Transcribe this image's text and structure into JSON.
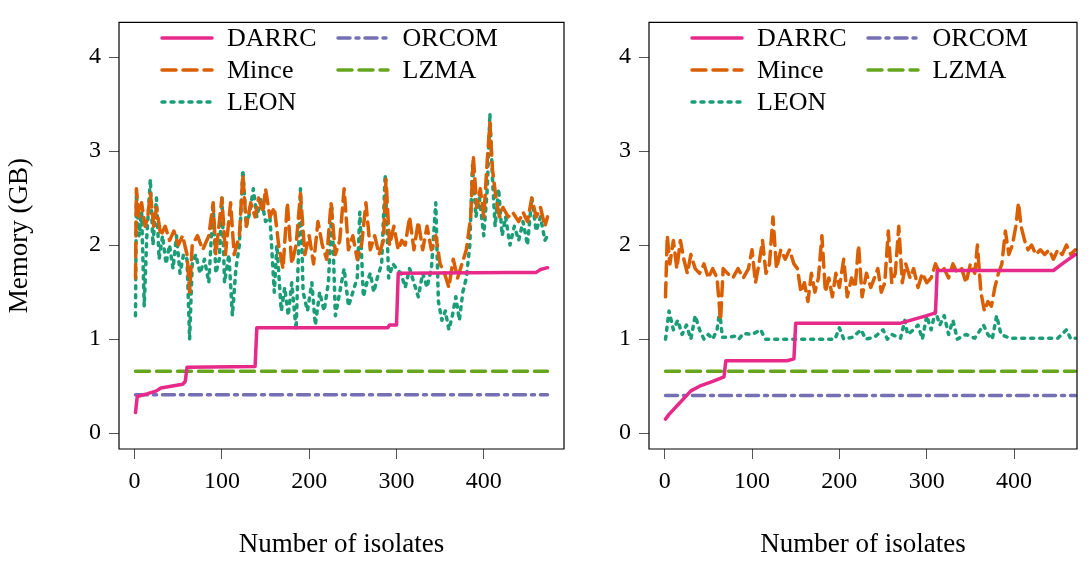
{
  "chart_data": [
    {
      "type": "line",
      "xlabel": "Number of isolates",
      "ylabel": "Memory (GB)",
      "xlim": [
        -17.9,
        491.9
      ],
      "xticks": [
        0,
        100,
        200,
        300,
        400
      ],
      "ylim": [
        -0.168,
        4.368
      ],
      "yticks": [
        0,
        1,
        2,
        3,
        4
      ],
      "grid": false,
      "legend": "top",
      "series": [
        {
          "name": "DARRC",
          "color": "#e7298a",
          "line_style": "solid",
          "x": [
            1,
            3,
            15,
            25,
            30,
            55,
            58,
            60,
            138,
            140,
            290,
            292,
            300,
            302,
            460,
            465,
            473
          ],
          "values": [
            0.22,
            0.39,
            0.42,
            0.45,
            0.48,
            0.52,
            0.55,
            0.7,
            0.71,
            1.12,
            1.12,
            1.15,
            1.15,
            1.7,
            1.71,
            1.74,
            1.76
          ]
        },
        {
          "name": "Mince",
          "color": "#d95f02",
          "line_style": "dashed",
          "x": [
            1,
            2,
            5,
            8,
            12,
            15,
            18,
            22,
            25,
            30,
            35,
            40,
            45,
            50,
            55,
            60,
            63,
            66,
            72,
            78,
            85,
            90,
            93,
            100,
            104,
            110,
            114,
            120,
            124,
            128,
            133,
            138,
            142,
            147,
            150,
            155,
            160,
            165,
            170,
            175,
            180,
            185,
            190,
            195,
            200,
            205,
            210,
            215,
            220,
            225,
            230,
            235,
            240,
            245,
            250,
            255,
            260,
            265,
            270,
            275,
            280,
            285,
            288,
            292,
            297,
            302,
            306,
            310,
            315,
            320,
            325,
            330,
            335,
            340,
            345,
            350,
            355,
            360,
            365,
            370,
            375,
            380,
            385,
            388,
            392,
            396,
            400,
            404,
            407,
            410,
            414,
            418,
            422,
            428,
            433,
            440,
            445,
            450,
            455,
            460,
            465,
            470,
            473
          ],
          "values": [
            1.65,
            2.6,
            2.3,
            2.45,
            2.2,
            2.3,
            2.55,
            2.2,
            2.4,
            2.1,
            2.2,
            2.05,
            2.15,
            2.0,
            2.1,
            1.9,
            1.5,
            2.0,
            2.1,
            1.95,
            2.1,
            2.45,
            1.9,
            2.5,
            1.9,
            2.45,
            1.9,
            2.1,
            2.75,
            2.2,
            2.45,
            2.3,
            2.5,
            2.35,
            2.6,
            2.3,
            2.4,
            2.0,
            1.75,
            2.45,
            1.8,
            2.0,
            2.55,
            1.9,
            2.1,
            1.8,
            2.25,
            2.0,
            1.85,
            2.45,
            1.9,
            2.05,
            2.6,
            1.95,
            2.1,
            1.85,
            2.0,
            2.45,
            1.95,
            2.1,
            1.9,
            2.05,
            2.7,
            2.0,
            2.2,
            1.95,
            2.05,
            2.0,
            2.3,
            1.95,
            2.25,
            1.95,
            2.2,
            1.95,
            2.1,
            1.8,
            1.7,
            1.55,
            1.85,
            1.65,
            1.8,
            1.95,
            2.3,
            2.95,
            2.4,
            2.6,
            2.3,
            2.9,
            3.3,
            2.8,
            2.5,
            2.3,
            2.4,
            2.3,
            2.35,
            2.25,
            2.35,
            2.25,
            2.5,
            2.3,
            2.4,
            2.2,
            2.3
          ]
        },
        {
          "name": "LEON",
          "color": "#1b9e77",
          "line_style": "dotted",
          "x": [
            1,
            2,
            5,
            8,
            11,
            14,
            18,
            21,
            25,
            28,
            32,
            36,
            40,
            44,
            48,
            52,
            56,
            60,
            63,
            66,
            70,
            75,
            80,
            85,
            90,
            93,
            97,
            100,
            103,
            108,
            112,
            116,
            120,
            124,
            128,
            132,
            136,
            140,
            145,
            150,
            155,
            160,
            163,
            168,
            172,
            176,
            180,
            185,
            190,
            193,
            198,
            203,
            207,
            212,
            217,
            222,
            226,
            230,
            235,
            240,
            245,
            250,
            255,
            258,
            262,
            266,
            270,
            274,
            278,
            283,
            287,
            291,
            296,
            300,
            305,
            310,
            315,
            320,
            325,
            330,
            335,
            340,
            345,
            348,
            352,
            356,
            360,
            364,
            368,
            372,
            376,
            380,
            384,
            387,
            391,
            395,
            400,
            404,
            407,
            410,
            413,
            417,
            421,
            425,
            430,
            435,
            440,
            445,
            450,
            455,
            460,
            465,
            470,
            473
          ],
          "values": [
            1.25,
            2.55,
            2.1,
            2.35,
            1.35,
            2.1,
            2.7,
            2.0,
            2.5,
            1.85,
            2.1,
            1.8,
            2.0,
            1.75,
            2.1,
            1.7,
            1.9,
            1.85,
            1.0,
            1.8,
            1.9,
            1.7,
            1.85,
            1.6,
            2.45,
            1.7,
            1.85,
            2.5,
            1.6,
            1.9,
            1.25,
            1.75,
            2.0,
            2.8,
            2.2,
            2.35,
            2.6,
            2.3,
            2.5,
            2.25,
            2.3,
            1.5,
            2.0,
            1.3,
            1.55,
            1.25,
            1.6,
            1.1,
            2.6,
            1.5,
            1.3,
            1.6,
            1.15,
            1.5,
            1.3,
            1.6,
            2.4,
            1.25,
            1.5,
            1.75,
            1.35,
            1.5,
            1.65,
            2.35,
            1.45,
            1.6,
            1.7,
            1.5,
            1.65,
            1.8,
            2.75,
            1.65,
            1.8,
            1.75,
            1.7,
            1.55,
            1.75,
            1.6,
            1.45,
            1.7,
            1.55,
            1.75,
            2.45,
            1.4,
            1.2,
            1.3,
            1.1,
            1.25,
            1.45,
            1.2,
            1.5,
            1.65,
            2.0,
            2.85,
            2.3,
            2.5,
            2.1,
            2.6,
            3.4,
            2.7,
            2.2,
            2.6,
            2.1,
            2.3,
            2.0,
            2.2,
            2.05,
            2.25,
            2.0,
            2.5,
            2.15,
            2.3,
            2.05,
            2.1
          ]
        },
        {
          "name": "ORCOM",
          "color": "#7570b3",
          "line_style": "dashdot",
          "x": [
            1,
            473
          ],
          "values": [
            0.41,
            0.41
          ]
        },
        {
          "name": "LZMA",
          "color": "#66a61e",
          "line_style": "dashed",
          "x": [
            1,
            473
          ],
          "values": [
            0.66,
            0.66
          ]
        }
      ]
    },
    {
      "type": "line",
      "xlabel": "Number of isolates",
      "xlim": [
        -17.9,
        472
      ],
      "xticks": [
        0,
        100,
        200,
        300,
        400
      ],
      "ylim": [
        -0.168,
        4.368
      ],
      "yticks": [
        0,
        1,
        2,
        3,
        4
      ],
      "grid": false,
      "legend": "top",
      "series": [
        {
          "name": "DARRC",
          "color": "#e7298a",
          "line_style": "solid",
          "x": [
            1,
            5,
            15,
            25,
            30,
            40,
            55,
            68,
            70,
            140,
            148,
            150,
            270,
            300,
            310,
            312,
            445,
            455,
            470
          ],
          "values": [
            0.15,
            0.2,
            0.3,
            0.4,
            0.45,
            0.5,
            0.55,
            0.6,
            0.77,
            0.77,
            0.79,
            1.17,
            1.17,
            1.25,
            1.28,
            1.73,
            1.73,
            1.8,
            1.9
          ]
        },
        {
          "name": "Mince",
          "color": "#d95f02",
          "line_style": "dashed",
          "x": [
            1,
            3,
            6,
            10,
            14,
            18,
            22,
            26,
            30,
            35,
            40,
            45,
            50,
            55,
            60,
            64,
            67,
            72,
            78,
            84,
            90,
            96,
            100,
            104,
            108,
            112,
            116,
            120,
            124,
            128,
            133,
            138,
            143,
            148,
            152,
            156,
            160,
            164,
            168,
            172,
            176,
            180,
            184,
            188,
            192,
            196,
            200,
            205,
            209,
            214,
            218,
            222,
            226,
            231,
            236,
            240,
            244,
            248,
            252,
            256,
            260,
            264,
            268,
            272,
            276,
            281,
            285,
            290,
            295,
            300,
            305,
            310,
            315,
            320,
            325,
            330,
            335,
            340,
            345,
            350,
            355,
            358,
            362,
            366,
            370,
            374,
            378,
            382,
            386,
            390,
            394,
            398,
            402,
            405,
            408,
            412,
            416,
            420,
            425,
            430,
            435,
            440,
            445,
            450,
            455,
            460,
            465,
            470
          ],
          "values": [
            1.45,
            2.1,
            1.8,
            2.05,
            1.75,
            2.05,
            1.85,
            1.7,
            1.9,
            1.75,
            1.7,
            1.8,
            1.65,
            1.75,
            1.65,
            1.2,
            1.75,
            1.7,
            1.65,
            1.75,
            1.65,
            1.75,
            1.95,
            1.6,
            1.8,
            2.05,
            1.7,
            1.8,
            2.3,
            1.75,
            1.95,
            1.85,
            1.95,
            1.8,
            1.75,
            1.5,
            1.6,
            1.4,
            1.7,
            1.5,
            1.65,
            2.1,
            1.5,
            1.65,
            1.45,
            1.7,
            1.55,
            1.85,
            1.45,
            1.65,
            1.55,
            2.0,
            1.45,
            1.7,
            1.55,
            1.65,
            1.75,
            1.5,
            1.6,
            2.15,
            1.6,
            1.7,
            2.2,
            1.6,
            1.8,
            1.65,
            1.75,
            1.55,
            1.7,
            1.6,
            1.65,
            1.8,
            1.7,
            1.75,
            1.65,
            1.8,
            1.7,
            1.75,
            1.6,
            1.8,
            1.7,
            2.0,
            1.5,
            1.3,
            1.4,
            1.35,
            1.55,
            1.7,
            1.8,
            2.15,
            1.9,
            2.0,
            2.2,
            2.45,
            2.2,
            2.05,
            1.95,
            2.0,
            1.9,
            1.95,
            1.9,
            1.95,
            1.85,
            1.95,
            1.9,
            2.0,
            1.9,
            1.95
          ]
        },
        {
          "name": "LEON",
          "color": "#1b9e77",
          "line_style": "dotted",
          "x": [
            1,
            5,
            10,
            15,
            20,
            25,
            30,
            35,
            40,
            45,
            50,
            55,
            60,
            63,
            66,
            72,
            80,
            85,
            90,
            100,
            110,
            115,
            125,
            140,
            150,
            160,
            175,
            195,
            200,
            205,
            215,
            225,
            230,
            240,
            250,
            255,
            260,
            270,
            275,
            278,
            285,
            290,
            295,
            300,
            305,
            310,
            315,
            320,
            325,
            330,
            335,
            345,
            355,
            365,
            370,
            375,
            380,
            385,
            395,
            410,
            430,
            450,
            460,
            465,
            470
          ],
          "values": [
            1.0,
            1.3,
            1.1,
            1.2,
            1.05,
            1.15,
            1.0,
            1.25,
            1.1,
            1.0,
            1.05,
            1.0,
            1.1,
            1.3,
            1.02,
            1.02,
            1.03,
            1.0,
            1.06,
            1.05,
            1.1,
            1.0,
            1.0,
            1.0,
            1.0,
            1.0,
            1.0,
            1.0,
            1.12,
            1.0,
            1.02,
            1.1,
            1.0,
            1.02,
            1.1,
            1.0,
            1.05,
            1.01,
            1.2,
            1.05,
            1.1,
            1.15,
            1.0,
            1.25,
            1.1,
            1.3,
            1.15,
            1.25,
            1.05,
            1.2,
            1.0,
            1.05,
            1.01,
            1.15,
            1.05,
            1.0,
            1.25,
            1.05,
            1.01,
            1.01,
            1.01,
            1.01,
            1.1,
            1.0,
            1.01
          ]
        },
        {
          "name": "ORCOM",
          "color": "#7570b3",
          "line_style": "dashdot",
          "x": [
            1,
            470
          ],
          "values": [
            0.4,
            0.4
          ]
        },
        {
          "name": "LZMA",
          "color": "#66a61e",
          "line_style": "dashed",
          "x": [
            1,
            470
          ],
          "values": [
            0.66,
            0.66
          ]
        }
      ]
    }
  ]
}
